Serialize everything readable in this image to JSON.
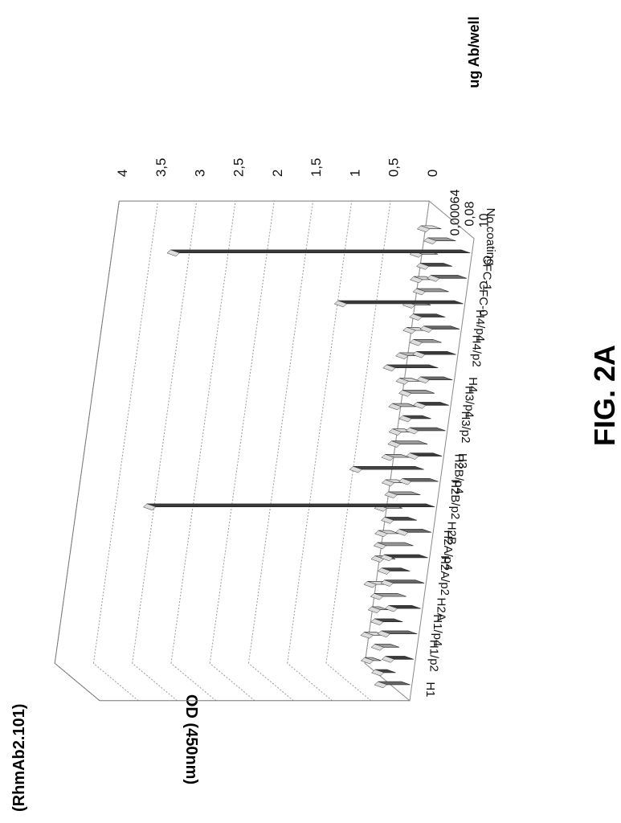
{
  "figure": {
    "label": "FIG. 2A",
    "antibody": "(RhmAb2.101)"
  },
  "chart_data": {
    "type": "bar",
    "view": "3d",
    "ylabel": "OD (450nm)",
    "zlabel": "ug Ab/well",
    "ylim": [
      0,
      4
    ],
    "yticks": [
      "0",
      "0,5",
      "1",
      "1,5",
      "2",
      "2,5",
      "3",
      "3,5",
      "4"
    ],
    "categories": [
      "H1",
      "H1/p2",
      "H1/p4",
      "H2A",
      "H2A/p2",
      "H2A/p4",
      "H2B",
      "H2B/p2",
      "H2B/p4",
      "H3",
      "H3/p2",
      "H3/p4",
      "H4",
      "H4/p2",
      "H4/p4",
      "CFC-0",
      "CFC-1",
      "No coating"
    ],
    "depth_labels": [
      "10",
      "0,08",
      "0,00064"
    ],
    "series": [
      {
        "values": [
          0.3,
          0.25,
          0.35,
          0.3,
          0.4,
          0.45,
          0.3,
          3.6,
          0.35,
          0.3,
          0.35,
          0.3,
          0.3,
          0.4,
          0.35,
          1.5,
          0.35,
          3.75
        ]
      },
      {
        "values": [
          0.15,
          0.2,
          0.25,
          0.3,
          0.25,
          0.35,
          0.3,
          0.3,
          0.8,
          0.35,
          0.25,
          0.3,
          0.55,
          0.25,
          0.3,
          0.3,
          0.3,
          0.25
        ]
      },
      {
        "values": [
          0.1,
          0.15,
          0.1,
          0.2,
          0.15,
          0.15,
          0.2,
          0.15,
          0.2,
          0.15,
          0.2,
          0.15,
          0.2,
          0.15,
          0.2,
          0.15,
          0.2,
          0.15
        ]
      }
    ],
    "grid": true
  }
}
